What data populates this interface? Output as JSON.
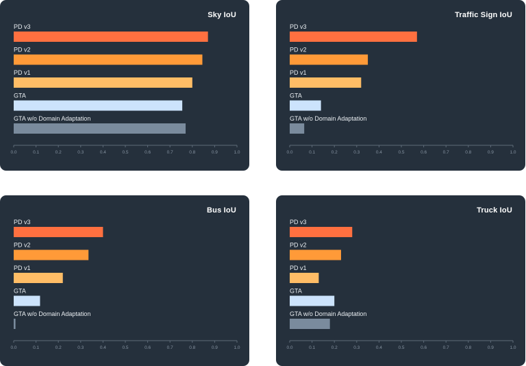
{
  "chart_data": [
    {
      "type": "bar",
      "orientation": "horizontal",
      "title": "Sky IoU",
      "categories": [
        "PD v3",
        "PD v2",
        "PD v1",
        "GTA",
        "GTA w/o Domain Adaptation"
      ],
      "values": [
        0.87,
        0.845,
        0.8,
        0.755,
        0.77
      ],
      "xlim": [
        0,
        1.0
      ],
      "ticks": [
        "0.0",
        "0.1",
        "0.2",
        "0.3",
        "0.4",
        "0.5",
        "0.6",
        "0.7",
        "0.8",
        "0.9",
        "1.0"
      ],
      "colors": [
        "#ff7040",
        "#ff9a38",
        "#ffbd66",
        "#cce3fc",
        "#7a8b9d"
      ],
      "grid": false
    },
    {
      "type": "bar",
      "orientation": "horizontal",
      "title": "Traffic Sign IoU",
      "categories": [
        "PD v3",
        "PD v2",
        "PD v1",
        "GTA",
        "GTA w/o Domain Adaptation"
      ],
      "values": [
        0.57,
        0.35,
        0.32,
        0.14,
        0.065
      ],
      "xlim": [
        0,
        1.0
      ],
      "ticks": [
        "0.0",
        "0.1",
        "0.2",
        "0.3",
        "0.4",
        "0.5",
        "0.6",
        "0.7",
        "0.8",
        "0.9",
        "1.0"
      ],
      "colors": [
        "#ff7040",
        "#ff9a38",
        "#ffbd66",
        "#cce3fc",
        "#7a8b9d"
      ],
      "grid": false
    },
    {
      "type": "bar",
      "orientation": "horizontal",
      "title": "Bus IoU",
      "categories": [
        "PD v3",
        "PD v2",
        "PD v1",
        "GTA",
        "GTA w/o Domain Adaptation"
      ],
      "values": [
        0.4,
        0.335,
        0.22,
        0.118,
        0.008
      ],
      "xlim": [
        0,
        1.0
      ],
      "ticks": [
        "0.0",
        "0.1",
        "0.2",
        "0.3",
        "0.4",
        "0.5",
        "0.6",
        "0.7",
        "0.8",
        "0.9",
        "1.0"
      ],
      "colors": [
        "#ff7040",
        "#ff9a38",
        "#ffbd66",
        "#cce3fc",
        "#7a8b9d"
      ],
      "grid": false
    },
    {
      "type": "bar",
      "orientation": "horizontal",
      "title": "Truck IoU",
      "categories": [
        "PD v3",
        "PD v2",
        "PD v1",
        "GTA",
        "GTA w/o Domain Adaptation"
      ],
      "values": [
        0.28,
        0.23,
        0.13,
        0.2,
        0.18
      ],
      "xlim": [
        0,
        1.0
      ],
      "ticks": [
        "0.0",
        "0.1",
        "0.2",
        "0.3",
        "0.4",
        "0.5",
        "0.6",
        "0.7",
        "0.8",
        "0.9",
        "1.0"
      ],
      "colors": [
        "#ff7040",
        "#ff9a38",
        "#ffbd66",
        "#cce3fc",
        "#7a8b9d"
      ],
      "grid": false
    }
  ]
}
